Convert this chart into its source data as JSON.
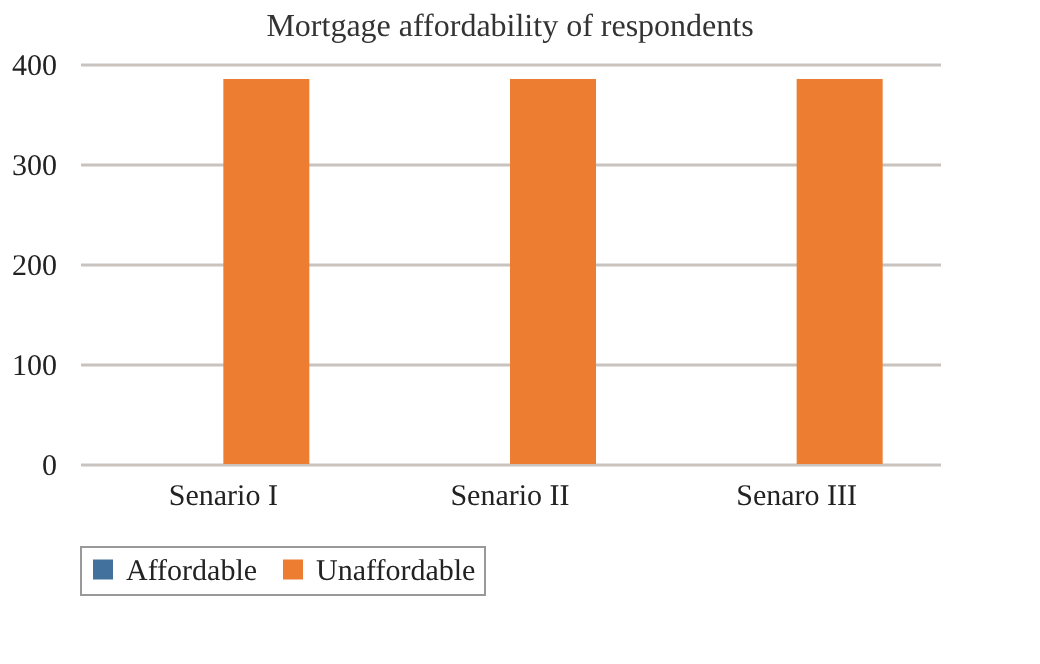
{
  "chart_data": {
    "type": "bar",
    "title": "Mortgage affordability of respondents",
    "categories": [
      "Senario I",
      "Senario II",
      "Senaro III"
    ],
    "series": [
      {
        "name": "Affordable",
        "color": "#41719c",
        "values": [
          0,
          0,
          0
        ]
      },
      {
        "name": "Unaffordable",
        "color": "#ed7d31",
        "values": [
          385,
          385,
          385
        ]
      }
    ],
    "ylim": [
      0,
      400
    ],
    "yticks": [
      0,
      100,
      200,
      300,
      400
    ],
    "grid": "y",
    "legend": "bottom"
  }
}
